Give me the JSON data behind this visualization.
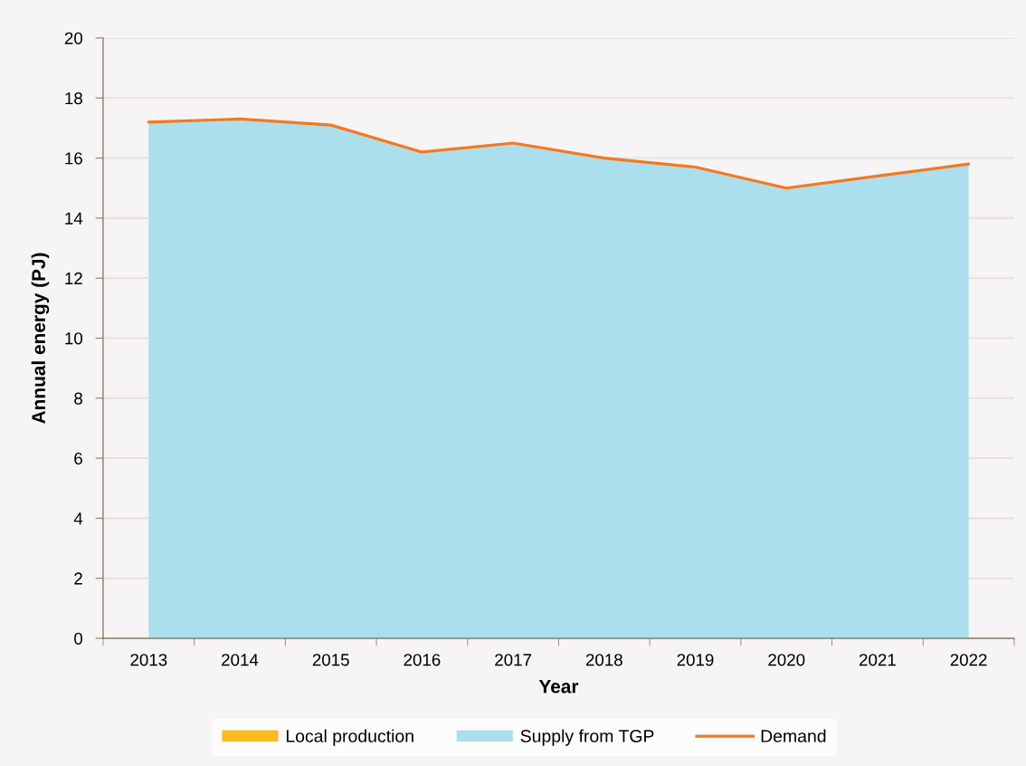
{
  "chart_data": {
    "type": "area",
    "xlabel": "Year",
    "ylabel": "Annual energy (PJ)",
    "categories": [
      "2013",
      "2014",
      "2015",
      "2016",
      "2017",
      "2018",
      "2019",
      "2020",
      "2021",
      "2022"
    ],
    "stacked": true,
    "series": [
      {
        "name": "Local production",
        "color": "#fdbb21",
        "values": [
          null,
          null,
          null,
          null,
          null,
          null,
          null,
          null,
          null,
          null
        ]
      },
      {
        "name": "Supply from TGP",
        "color": "#abdfed",
        "values": [
          17.2,
          17.3,
          17.1,
          16.2,
          16.5,
          16.0,
          15.7,
          15.0,
          15.4,
          15.8
        ]
      },
      {
        "name": "Demand",
        "type": "line",
        "color": "#f47920",
        "values": [
          17.2,
          17.3,
          17.1,
          16.2,
          16.5,
          16.0,
          15.7,
          15.0,
          15.4,
          15.8
        ]
      }
    ],
    "ylim": [
      0,
      20
    ],
    "yticks": [
      0,
      2,
      4,
      6,
      8,
      10,
      12,
      14,
      16,
      18,
      20
    ],
    "grid": "y",
    "legend": "bottom"
  }
}
